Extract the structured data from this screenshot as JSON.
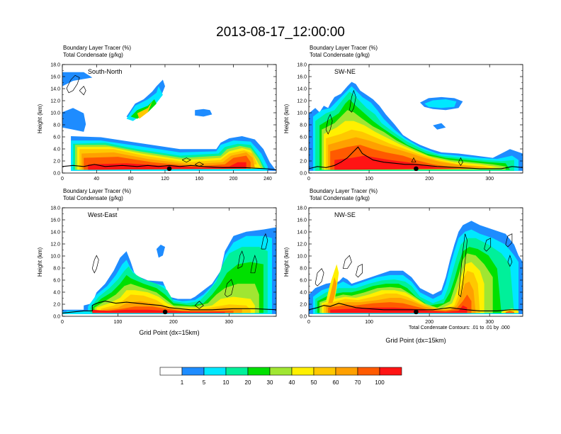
{
  "title": "2013-08-17_12:00:00",
  "footnote": "Total Condensate Contours: .01 to .01 by .000",
  "colorbar": {
    "colors": [
      "#ffffff",
      "#1e8cff",
      "#00e8ff",
      "#00f09a",
      "#00e000",
      "#a0e632",
      "#fff000",
      "#ffc800",
      "#ffa000",
      "#ff5a00",
      "#ff1414"
    ],
    "labels": [
      "1",
      "5",
      "10",
      "20",
      "30",
      "40",
      "50",
      "60",
      "70",
      "100"
    ]
  },
  "chart_data": [
    {
      "type": "heatmap",
      "panel": "South-North",
      "subtitle_line1": "Boundary Layer Tracer   (%)",
      "subtitle_line2": "Total Condensate   (g/kg)",
      "ylabel": "Height (km)",
      "xlabel": "",
      "xlim": [
        0,
        250
      ],
      "xticks": [
        0,
        40,
        80,
        120,
        160,
        200,
        240
      ],
      "ylim": [
        0,
        18
      ],
      "yticks": [
        "0.0",
        "2.0",
        "4.0",
        "6.0",
        "8.0",
        "10.0",
        "12.0",
        "14.0",
        "16.0",
        "18.0"
      ],
      "marker_x": 125
    },
    {
      "type": "heatmap",
      "panel": "SW-NE",
      "subtitle_line1": "Boundary Layer Tracer   (%)",
      "subtitle_line2": "Total Condensate   (g/kg)",
      "ylabel": "Height (km)",
      "xlabel": "",
      "xlim": [
        0,
        355
      ],
      "xticks": [
        0,
        100,
        200,
        300
      ],
      "ylim": [
        0,
        18
      ],
      "yticks": [
        "0.0",
        "2.0",
        "4.0",
        "6.0",
        "8.0",
        "10.0",
        "12.0",
        "14.0",
        "16.0",
        "18.0"
      ],
      "marker_x": 178
    },
    {
      "type": "heatmap",
      "panel": "West-East",
      "subtitle_line1": "Boundary Layer Tracer   (%)",
      "subtitle_line2": "Total Condensate   (g/kg)",
      "ylabel": "Height (km)",
      "xlabel": "Grid Point (dx=15km)",
      "xlim": [
        0,
        385
      ],
      "xticks": [
        0,
        100,
        200,
        300
      ],
      "ylim": [
        0,
        18
      ],
      "yticks": [
        "0.0",
        "2.0",
        "4.0",
        "6.0",
        "8.0",
        "10.0",
        "12.0",
        "14.0",
        "16.0",
        "18.0"
      ],
      "marker_x": 185
    },
    {
      "type": "heatmap",
      "panel": "NW-SE",
      "subtitle_line1": "Boundary Layer Tracer   (%)",
      "subtitle_line2": "Total Condensate   (g/kg)",
      "ylabel": "Height (km)",
      "xlabel": "Grid Point (dx=15km)",
      "xlim": [
        0,
        355
      ],
      "xticks": [
        0,
        100,
        200,
        300
      ],
      "ylim": [
        0,
        18
      ],
      "yticks": [
        "0.0",
        "2.0",
        "4.0",
        "6.0",
        "8.0",
        "10.0",
        "12.0",
        "14.0",
        "16.0",
        "18.0"
      ],
      "marker_x": 178
    }
  ]
}
